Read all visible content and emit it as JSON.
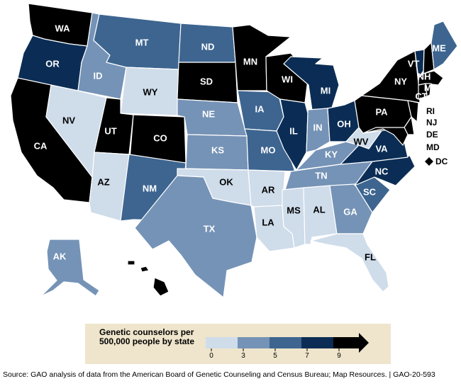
{
  "colors": {
    "bin_0_3": "#cfdcea",
    "bin_3_5": "#7593b6",
    "bin_5_7": "#3d6590",
    "bin_7_9": "#0b2d55",
    "bin_9_plus": "#000000",
    "legend_bg": "#efe5cc"
  },
  "states": [
    {
      "abbr": "WA",
      "bin": "bin_9_plus"
    },
    {
      "abbr": "OR",
      "bin": "bin_7_9"
    },
    {
      "abbr": "CA",
      "bin": "bin_9_plus"
    },
    {
      "abbr": "ID",
      "bin": "bin_3_5"
    },
    {
      "abbr": "NV",
      "bin": "bin_0_3"
    },
    {
      "abbr": "AZ",
      "bin": "bin_0_3"
    },
    {
      "abbr": "MT",
      "bin": "bin_5_7"
    },
    {
      "abbr": "WY",
      "bin": "bin_0_3"
    },
    {
      "abbr": "UT",
      "bin": "bin_9_plus"
    },
    {
      "abbr": "CO",
      "bin": "bin_9_plus"
    },
    {
      "abbr": "NM",
      "bin": "bin_5_7"
    },
    {
      "abbr": "ND",
      "bin": "bin_5_7"
    },
    {
      "abbr": "SD",
      "bin": "bin_9_plus"
    },
    {
      "abbr": "NE",
      "bin": "bin_3_5"
    },
    {
      "abbr": "KS",
      "bin": "bin_3_5"
    },
    {
      "abbr": "OK",
      "bin": "bin_0_3"
    },
    {
      "abbr": "TX",
      "bin": "bin_3_5"
    },
    {
      "abbr": "MN",
      "bin": "bin_9_plus"
    },
    {
      "abbr": "IA",
      "bin": "bin_5_7"
    },
    {
      "abbr": "MO",
      "bin": "bin_5_7"
    },
    {
      "abbr": "AR",
      "bin": "bin_0_3"
    },
    {
      "abbr": "LA",
      "bin": "bin_0_3"
    },
    {
      "abbr": "WI",
      "bin": "bin_9_plus"
    },
    {
      "abbr": "IL",
      "bin": "bin_7_9"
    },
    {
      "abbr": "MI",
      "bin": "bin_7_9"
    },
    {
      "abbr": "IN",
      "bin": "bin_3_5"
    },
    {
      "abbr": "OH",
      "bin": "bin_7_9"
    },
    {
      "abbr": "KY",
      "bin": "bin_3_5"
    },
    {
      "abbr": "TN",
      "bin": "bin_3_5"
    },
    {
      "abbr": "MS",
      "bin": "bin_0_3"
    },
    {
      "abbr": "AL",
      "bin": "bin_0_3"
    },
    {
      "abbr": "GA",
      "bin": "bin_3_5"
    },
    {
      "abbr": "FL",
      "bin": "bin_0_3"
    },
    {
      "abbr": "SC",
      "bin": "bin_5_7"
    },
    {
      "abbr": "NC",
      "bin": "bin_7_9"
    },
    {
      "abbr": "VA",
      "bin": "bin_7_9"
    },
    {
      "abbr": "WV",
      "bin": "bin_0_3"
    },
    {
      "abbr": "PA",
      "bin": "bin_9_plus"
    },
    {
      "abbr": "NY",
      "bin": "bin_9_plus"
    },
    {
      "abbr": "VT",
      "bin": "bin_7_9"
    },
    {
      "abbr": "NH",
      "bin": "bin_9_plus"
    },
    {
      "abbr": "ME",
      "bin": "bin_5_7"
    },
    {
      "abbr": "MA",
      "bin": "bin_9_plus"
    },
    {
      "abbr": "CT",
      "bin": "bin_9_plus"
    },
    {
      "abbr": "RI",
      "bin": "bin_9_plus"
    },
    {
      "abbr": "NJ",
      "bin": "bin_9_plus"
    },
    {
      "abbr": "DE",
      "bin": "bin_9_plus"
    },
    {
      "abbr": "MD",
      "bin": "bin_9_plus"
    },
    {
      "abbr": "DC",
      "bin": "bin_9_plus"
    },
    {
      "abbr": "AK",
      "bin": "bin_3_5"
    },
    {
      "abbr": "HI",
      "bin": "bin_9_plus"
    }
  ],
  "legend": {
    "title": "Genetic counselors per 500,000 people by state",
    "ticks": [
      "0",
      "3",
      "5",
      "7",
      "9"
    ]
  },
  "source": "Source: GAO analysis of data from the American Board of Genetic Counseling and Census Bureau; Map Resources.  |  GAO-20-593"
}
